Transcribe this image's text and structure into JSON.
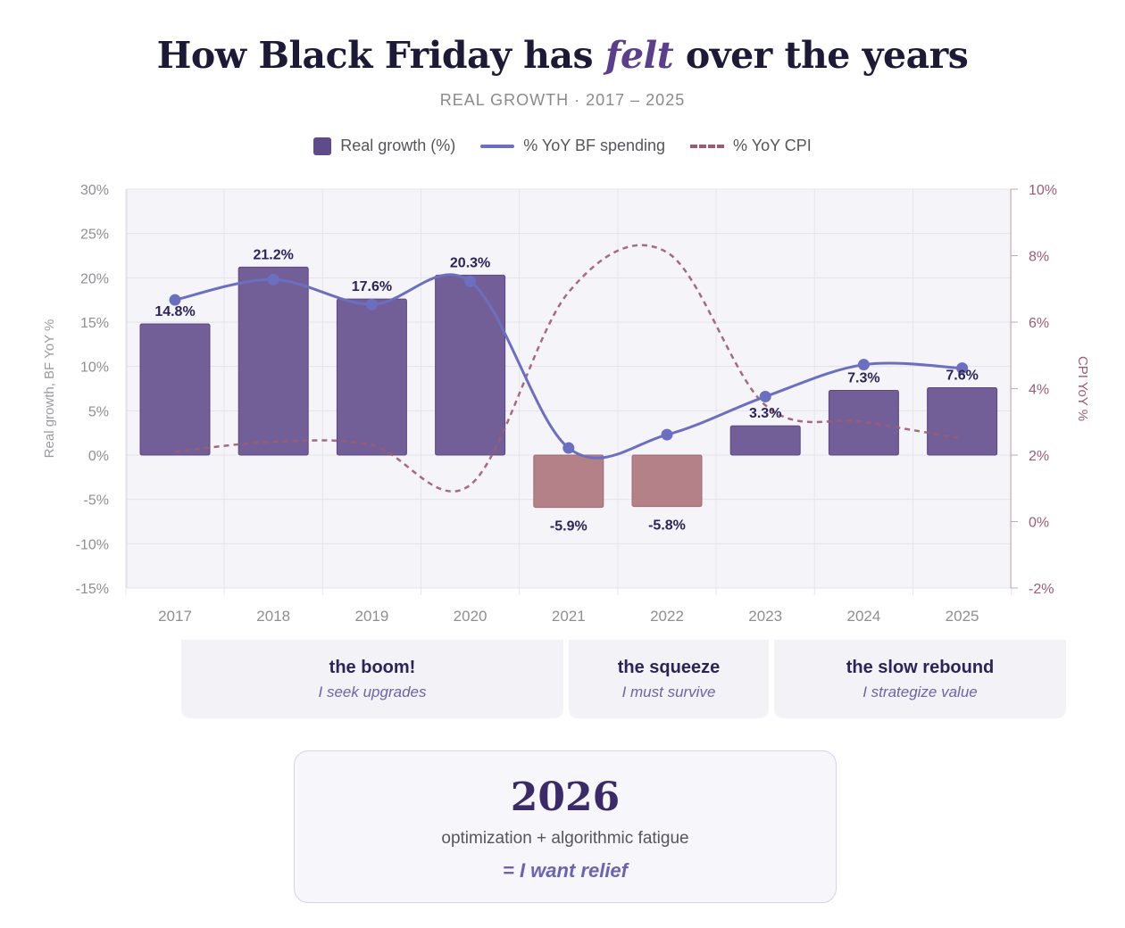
{
  "header": {
    "title_prefix": "How Black Friday has ",
    "title_emphasis": "felt",
    "title_suffix": " over the years",
    "subtitle": "REAL GROWTH · 2017 – 2025"
  },
  "legend": [
    {
      "label": "Real growth (%)",
      "kind": "bar",
      "color": "#5f4a8b"
    },
    {
      "label": "% YoY BF spending",
      "kind": "line",
      "color": "#6b6fbf"
    },
    {
      "label": "% YoY CPI",
      "kind": "dash",
      "color": "#9b5c72"
    }
  ],
  "chart_data": {
    "type": "bar",
    "categories": [
      "2017",
      "2018",
      "2019",
      "2020",
      "2021",
      "2022",
      "2023",
      "2024",
      "2025"
    ],
    "series": [
      {
        "name": "Real growth (%)",
        "type": "bar",
        "axis": "left",
        "values": [
          14.8,
          21.2,
          17.6,
          20.3,
          -5.9,
          -5.8,
          3.3,
          7.3,
          7.6
        ],
        "labels": [
          "14.8%",
          "21.2%",
          "17.6%",
          "20.3%",
          "-5.9%",
          "-5.8%",
          "3.3%",
          "7.3%",
          "7.6%"
        ]
      },
      {
        "name": "% YoY BF spending",
        "type": "line",
        "axis": "left",
        "values": [
          17.5,
          19.8,
          17.0,
          19.6,
          0.8,
          2.3,
          6.6,
          10.2,
          9.8
        ]
      },
      {
        "name": "% YoY CPI",
        "type": "line",
        "style": "dashed",
        "axis": "right",
        "values": [
          2.1,
          2.4,
          2.3,
          1.1,
          6.9,
          8.1,
          3.5,
          3.0,
          2.5
        ]
      }
    ],
    "ylabel": "Real growth, BF YoY %",
    "ylabel_right": "CPI YoY %",
    "ylim": [
      -15,
      30
    ],
    "ylim_right": [
      -2,
      10
    ],
    "yticks": [
      -15,
      -10,
      -5,
      0,
      5,
      10,
      15,
      20,
      25,
      30
    ],
    "yticks_right": [
      -2,
      0,
      2,
      4,
      6,
      8,
      10
    ],
    "yticklabels": [
      "-15%",
      "-10%",
      "-5%",
      "0%",
      "5%",
      "10%",
      "15%",
      "20%",
      "25%",
      "30%"
    ],
    "yticklabels_right": [
      "-2%",
      "0%",
      "2%",
      "4%",
      "6%",
      "8%",
      "10%"
    ],
    "grid": true,
    "legend_position": "top",
    "colors": {
      "bar_positive": "#735f97",
      "bar_negative": "#b58189",
      "spending_line": "#6b6fbf",
      "cpi_line": "#9b5c72",
      "bar_label": "#2c2458"
    }
  },
  "phases": [
    {
      "name": "the boom!",
      "motto": "I seek upgrades"
    },
    {
      "name": "the squeeze",
      "motto": "I must survive"
    },
    {
      "name": "the slow rebound",
      "motto": "I strategize value"
    }
  ],
  "verdict": {
    "year": "2026",
    "description": "optimization + algorithmic fatigue",
    "conclusion": "= I want relief"
  }
}
